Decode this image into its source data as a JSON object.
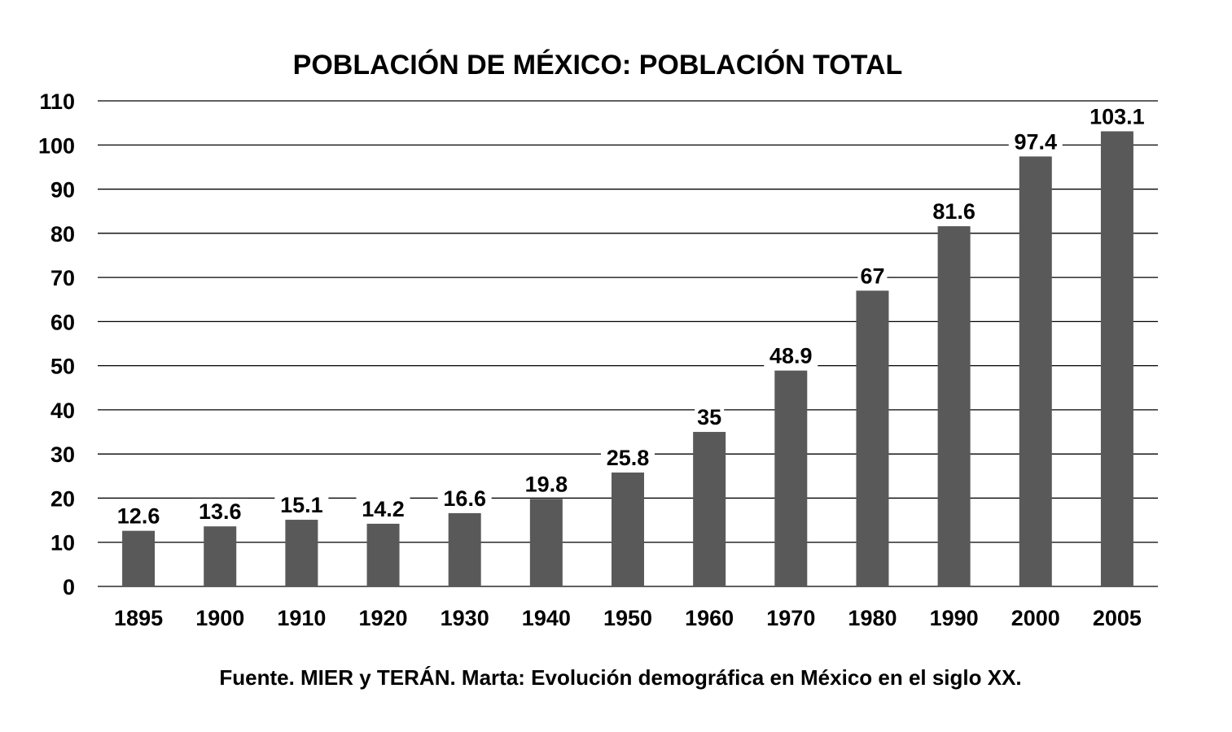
{
  "chart_data": {
    "type": "bar",
    "title": "POBLACIÓN DE MÉXICO: POBLACIÓN TOTAL",
    "categories": [
      "1895",
      "1900",
      "1910",
      "1920",
      "1930",
      "1940",
      "1950",
      "1960",
      "1970",
      "1980",
      "1990",
      "2000",
      "2005"
    ],
    "values": [
      12.6,
      13.6,
      15.1,
      14.2,
      16.6,
      19.8,
      25.8,
      35,
      48.9,
      67,
      81.6,
      97.4,
      103.1
    ],
    "data_labels": [
      "12.6",
      "13.6",
      "15.1",
      "14.2",
      "16.6",
      "19.8",
      "25.8",
      "35",
      "48.9",
      "67",
      "81.6",
      "97.4",
      "103.1"
    ],
    "yticks": [
      "0",
      "10",
      "20",
      "30",
      "40",
      "50",
      "60",
      "70",
      "80",
      "90",
      "100",
      "110"
    ],
    "ylim": [
      0,
      110
    ],
    "xlabel": "",
    "ylabel": "",
    "grid": true,
    "bar_color": "#595959",
    "source": "Fuente. MIER y TERÁN. Marta: Evolución demográfica en México en el siglo XX."
  }
}
